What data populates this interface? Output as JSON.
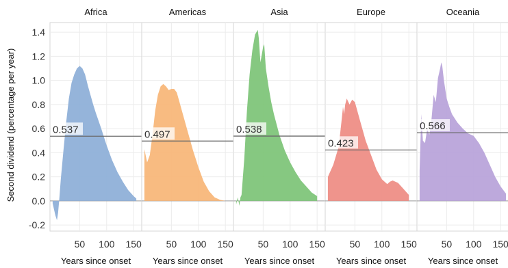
{
  "chart_data": {
    "type": "area",
    "ylabel": "Second dividend (percentage per year)",
    "xlabel": "Years since onset",
    "ylim": [
      -0.25,
      1.48
    ],
    "xlim": [
      -5,
      165
    ],
    "yticks": [
      -0.2,
      0,
      0.2,
      0.4,
      0.6,
      0.8,
      1.0,
      1.2,
      1.4
    ],
    "ytick_labels": [
      "-0.2",
      "0.0",
      "0.2",
      "0.4",
      "0.6",
      "0.8",
      "1.0",
      "1.2",
      "1.4"
    ],
    "xticks": [
      50,
      100,
      150
    ],
    "xtick_labels": [
      "50",
      "100",
      "150"
    ],
    "grid": true,
    "panels": [
      {
        "name": "Africa",
        "color": "#8fb0d8",
        "mean": 0.537,
        "mean_label": "0.537",
        "x": [
          0,
          5,
          8,
          10,
          12,
          15,
          20,
          25,
          30,
          35,
          40,
          45,
          50,
          55,
          60,
          65,
          70,
          75,
          80,
          90,
          100,
          110,
          120,
          130,
          140,
          150,
          155
        ],
        "y": [
          -0.02,
          -0.12,
          -0.16,
          -0.1,
          0.0,
          0.18,
          0.42,
          0.65,
          0.85,
          0.98,
          1.05,
          1.1,
          1.12,
          1.1,
          1.05,
          0.96,
          0.88,
          0.8,
          0.73,
          0.6,
          0.46,
          0.34,
          0.24,
          0.16,
          0.09,
          0.04,
          0.02
        ]
      },
      {
        "name": "Americas",
        "color": "#f8b77a",
        "mean": 0.497,
        "mean_label": "0.497",
        "x": [
          0,
          5,
          10,
          15,
          20,
          25,
          30,
          35,
          40,
          45,
          50,
          55,
          60,
          65,
          70,
          80,
          90,
          100,
          110,
          120,
          130,
          140,
          150
        ],
        "y": [
          0.43,
          0.32,
          0.38,
          0.55,
          0.75,
          0.88,
          0.95,
          0.97,
          0.95,
          0.92,
          0.93,
          0.93,
          0.9,
          0.82,
          0.74,
          0.58,
          0.42,
          0.28,
          0.16,
          0.08,
          0.03,
          0.01,
          0.0
        ]
      },
      {
        "name": "Asia",
        "color": "#7fc57a",
        "mean": 0.538,
        "mean_label": "0.538",
        "x": [
          0,
          3,
          6,
          8,
          10,
          15,
          20,
          25,
          30,
          35,
          40,
          42,
          45,
          50,
          52,
          55,
          60,
          65,
          70,
          80,
          90,
          100,
          110,
          120,
          130,
          140,
          150
        ],
        "y": [
          -0.03,
          0.03,
          -0.04,
          0.03,
          0.05,
          0.35,
          0.75,
          1.05,
          1.25,
          1.38,
          1.42,
          1.35,
          1.15,
          1.28,
          1.3,
          1.1,
          0.95,
          0.82,
          0.72,
          0.55,
          0.42,
          0.32,
          0.24,
          0.17,
          0.12,
          0.07,
          0.04
        ]
      },
      {
        "name": "Europe",
        "color": "#ee8e86",
        "mean": 0.423,
        "mean_label": "0.423",
        "x": [
          0,
          10,
          20,
          25,
          28,
          30,
          32,
          35,
          40,
          45,
          50,
          55,
          60,
          65,
          70,
          80,
          90,
          100,
          110,
          115,
          120,
          130,
          140,
          150
        ],
        "y": [
          0.2,
          0.3,
          0.45,
          0.65,
          0.78,
          0.72,
          0.8,
          0.85,
          0.8,
          0.84,
          0.82,
          0.74,
          0.66,
          0.58,
          0.5,
          0.38,
          0.26,
          0.18,
          0.14,
          0.16,
          0.17,
          0.15,
          0.1,
          0.05
        ]
      },
      {
        "name": "Oceania",
        "color": "#b9a4da",
        "mean": 0.566,
        "mean_label": "0.566",
        "x": [
          0,
          3,
          6,
          10,
          14,
          18,
          22,
          26,
          30,
          34,
          38,
          40,
          42,
          45,
          50,
          55,
          60,
          70,
          80,
          90,
          100,
          110,
          120,
          130,
          140,
          150,
          160
        ],
        "y": [
          0.25,
          0.72,
          0.5,
          0.48,
          0.6,
          0.55,
          0.68,
          0.88,
          0.82,
          1.02,
          1.1,
          1.15,
          1.12,
          1.0,
          0.85,
          0.78,
          0.72,
          0.65,
          0.6,
          0.56,
          0.54,
          0.48,
          0.4,
          0.3,
          0.2,
          0.12,
          0.06
        ]
      }
    ]
  }
}
